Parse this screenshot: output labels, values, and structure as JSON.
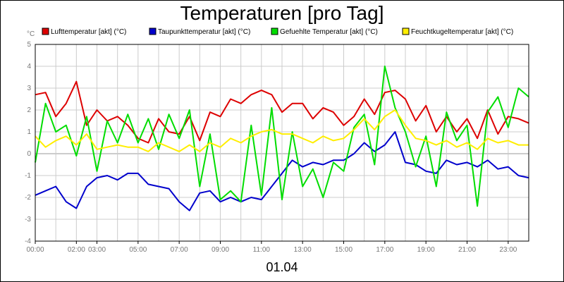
{
  "chart_data": {
    "type": "line",
    "title": "Temperaturen [pro Tag]",
    "unit_label": "°C",
    "date_label": "01.04",
    "ylim": [
      -4,
      5
    ],
    "yticks": [
      -4,
      -3,
      -2,
      -1,
      0,
      1,
      2,
      3,
      4,
      5
    ],
    "xlim_hours": [
      0,
      24
    ],
    "xtick_labels": [
      "00:00",
      "02:00",
      "03:00",
      "05:00",
      "07:00",
      "09:00",
      "11:00",
      "13:00",
      "15:00",
      "17:00",
      "19:00",
      "21:00",
      "23:00"
    ],
    "xtick_hours": [
      0,
      2,
      3,
      5,
      7,
      9,
      11,
      13,
      15,
      17,
      19,
      21,
      23
    ],
    "grid": true,
    "legend_position": "top",
    "x_hours": [
      0,
      0.5,
      1,
      1.5,
      2,
      2.5,
      3,
      3.5,
      4,
      4.5,
      5,
      5.5,
      6,
      6.5,
      7,
      7.5,
      8,
      8.5,
      9,
      9.5,
      10,
      10.5,
      11,
      11.5,
      12,
      12.5,
      13,
      13.5,
      14,
      14.5,
      15,
      15.5,
      16,
      16.5,
      17,
      17.5,
      18,
      18.5,
      19,
      19.5,
      20,
      20.5,
      21,
      21.5,
      22,
      22.5,
      23,
      23.5,
      24
    ],
    "series": [
      {
        "name": "Lufttemperatur [akt] (°C)",
        "color": "#dd0000",
        "values": [
          2.7,
          2.8,
          1.7,
          2.3,
          3.3,
          1.3,
          2.0,
          1.5,
          1.7,
          1.3,
          0.7,
          0.5,
          1.6,
          1.0,
          0.9,
          1.7,
          0.6,
          1.9,
          1.7,
          2.5,
          2.3,
          2.7,
          2.9,
          2.7,
          1.9,
          2.3,
          2.3,
          1.6,
          2.1,
          1.9,
          1.3,
          1.7,
          2.5,
          1.8,
          2.8,
          2.9,
          2.5,
          1.5,
          2.2,
          1.0,
          1.7,
          1.0,
          1.6,
          0.7,
          2.0,
          0.9,
          1.7,
          1.6,
          1.4
        ]
      },
      {
        "name": "Taupunkttemperatur [akt] (°C)",
        "color": "#0000cc",
        "values": [
          -1.9,
          -1.7,
          -1.5,
          -2.2,
          -2.5,
          -1.5,
          -1.1,
          -1.0,
          -1.2,
          -0.9,
          -0.9,
          -1.4,
          -1.5,
          -1.6,
          -2.2,
          -2.6,
          -1.8,
          -1.7,
          -2.2,
          -2.0,
          -2.2,
          -2.0,
          -2.1,
          -1.5,
          -0.9,
          -0.3,
          -0.6,
          -0.4,
          -0.5,
          -0.3,
          -0.3,
          0.0,
          0.5,
          0.1,
          0.4,
          1.0,
          -0.4,
          -0.5,
          -0.8,
          -0.9,
          -0.3,
          -0.5,
          -0.4,
          -0.6,
          -0.3,
          -0.7,
          -0.6,
          -1.0,
          -1.1
        ]
      },
      {
        "name": "Gefuehlte Temperatur [akt] (°C)",
        "color": "#00dd00",
        "values": [
          -0.4,
          2.3,
          1.0,
          1.3,
          -0.1,
          1.7,
          -0.8,
          1.5,
          0.5,
          1.8,
          0.5,
          1.6,
          0.2,
          1.8,
          0.7,
          2.0,
          -1.5,
          0.9,
          -2.1,
          -1.7,
          -2.2,
          1.3,
          -1.9,
          2.1,
          -2.1,
          1.0,
          -1.5,
          -0.7,
          -2.0,
          -0.4,
          -0.8,
          1.2,
          1.8,
          -0.5,
          4.0,
          2.1,
          1.0,
          -0.6,
          0.8,
          -1.5,
          1.9,
          0.6,
          1.3,
          -2.4,
          1.9,
          2.6,
          1.2,
          3.0,
          2.6
        ]
      },
      {
        "name": "Feuchtkugeltemperatur [akt] (°C)",
        "color": "#ffee00",
        "values": [
          0.8,
          0.3,
          0.6,
          0.8,
          0.4,
          0.9,
          0.2,
          0.3,
          0.4,
          0.3,
          0.3,
          0.1,
          0.5,
          0.3,
          0.1,
          0.4,
          0.1,
          0.5,
          0.3,
          0.7,
          0.5,
          0.8,
          1.0,
          1.1,
          0.9,
          0.9,
          0.7,
          0.5,
          0.8,
          0.6,
          0.7,
          1.1,
          1.6,
          1.1,
          1.7,
          2.0,
          1.3,
          0.7,
          0.6,
          0.4,
          0.6,
          0.3,
          0.5,
          0.2,
          0.7,
          0.5,
          0.6,
          0.4,
          0.4
        ]
      }
    ]
  }
}
